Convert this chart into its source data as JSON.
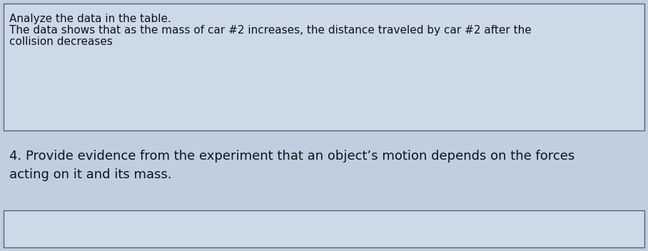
{
  "bg_color": "#bfcfdf",
  "box1_bg": "#ccdae8",
  "box1_border": "#5a6070",
  "box2_bg": "#ccdae8",
  "box2_border": "#5a6070",
  "box1_text_line1": "Analyze the data in the table.",
  "box1_text_line2": "The data shows that as the mass of car #2 increases, the distance traveled by car #2 after the",
  "box1_text_line3": "collision decreases",
  "question_text_line1": "4. Provide evidence from the experiment that an object’s motion depends on the forces",
  "question_text_line2": "acting on it and its mass.",
  "font_size": 11.0,
  "question_font_size": 13.0,
  "fig_width": 9.08,
  "fig_height": 3.52,
  "dpi": 100
}
